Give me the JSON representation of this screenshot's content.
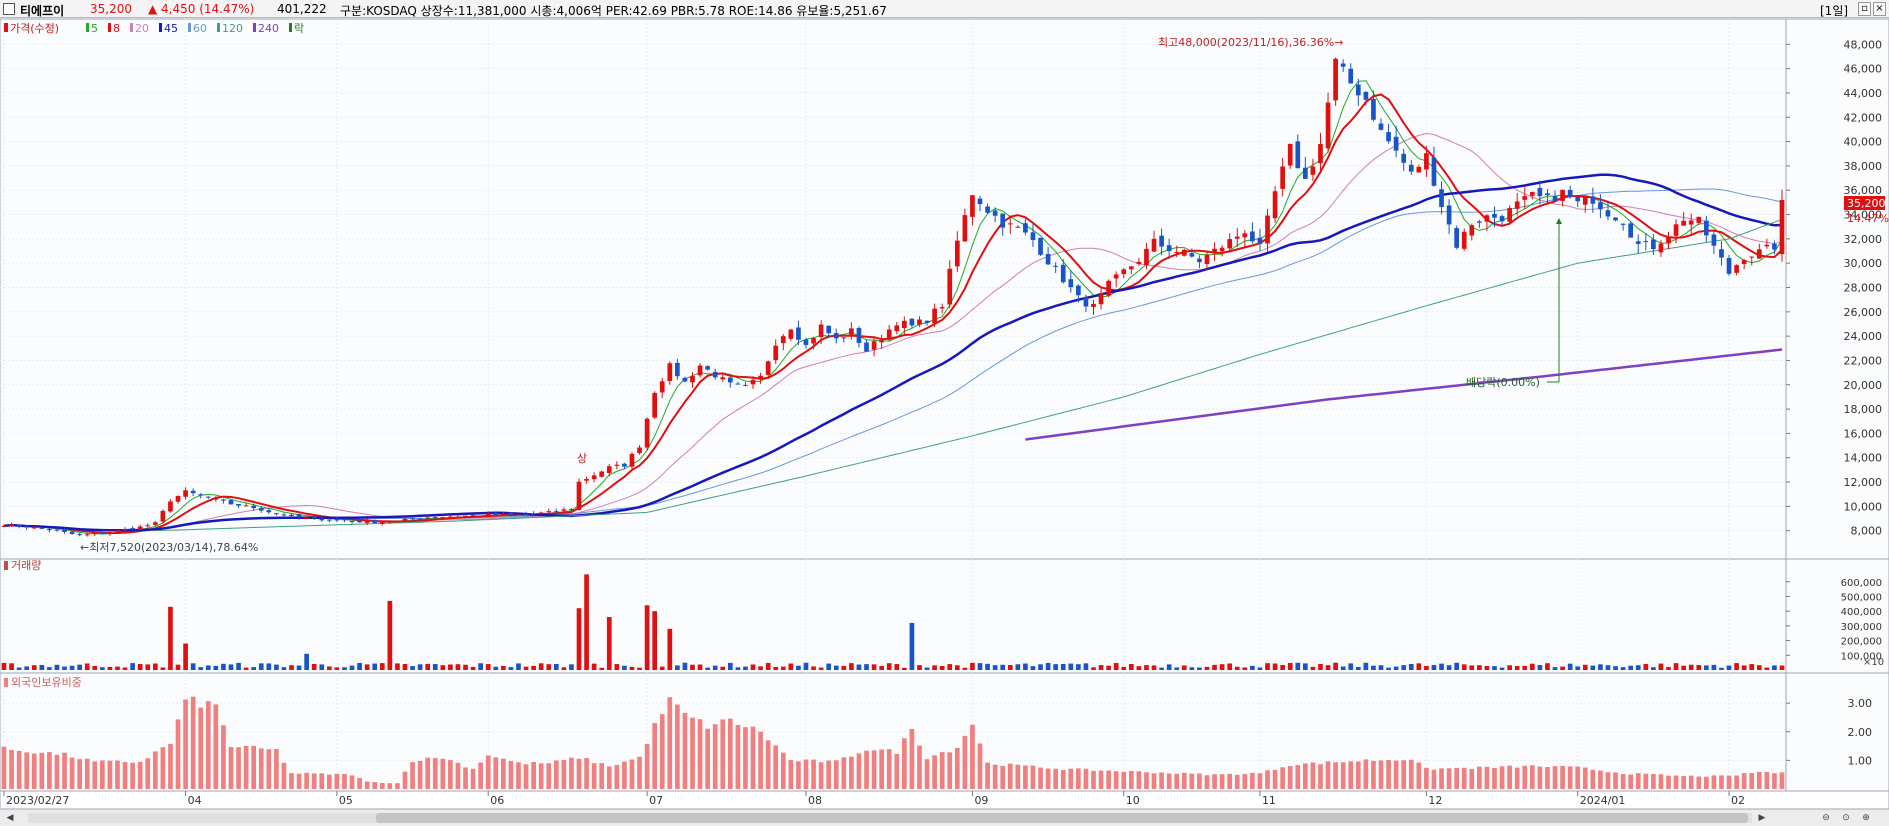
{
  "header": {
    "stock_name": "티에프이",
    "price": "35,200",
    "change": "▲ 4,450 (14.47%)",
    "volume": "401,222",
    "info": "구분:KOSDAQ 상장수:11,381,000 시총:4,006억 PER:42.69 PBR:5.78 ROE:14.86 유보율:5,251.67",
    "period_button": "[1일]"
  },
  "legend": {
    "main_label": "가격(수정)",
    "ma_items": [
      {
        "label": "5",
        "color": "#22aa22"
      },
      {
        "label": "8",
        "color": "#e01010"
      },
      {
        "label": "20",
        "color": "#d080b0"
      },
      {
        "label": "45",
        "color": "#1818b8"
      },
      {
        "label": "60",
        "color": "#6a9ad0"
      },
      {
        "label": "120",
        "color": "#40a080"
      },
      {
        "label": "240",
        "color": "#8040c0"
      },
      {
        "label": "락",
        "color": "#208020"
      }
    ]
  },
  "colors": {
    "up": "#e01010",
    "down": "#1a55c8",
    "foreign": "#f08080"
  },
  "annotations": {
    "high": "최고48,000(2023/11/16),36.36%→",
    "low": "←최저7,520(2023/03/14),78.64%",
    "limit_up": "상",
    "dividend": "배당락(0.00%)"
  },
  "price_tag": {
    "value": "35,200",
    "pct": "14.47%"
  },
  "volume_panel": {
    "title": "거래량",
    "unit": "×10"
  },
  "foreign_panel": {
    "title": "외국인보유비중"
  },
  "icons": [
    "zoom-out-icon",
    "zoom-reset-icon",
    "zoom-in-icon",
    "scroll-left-icon",
    "scroll-right-icon"
  ],
  "chart_data": {
    "type": "candlestick",
    "price_axis": {
      "ticks": [
        8000,
        10000,
        12000,
        14000,
        16000,
        18000,
        20000,
        22000,
        24000,
        26000,
        28000,
        30000,
        32000,
        34000,
        36000,
        38000,
        40000,
        42000,
        44000,
        46000,
        48000
      ],
      "tick_labels": [
        "8,000",
        "10,000",
        "12,000",
        "14,000",
        "16,000",
        "18,000",
        "20,000",
        "22,000",
        "24,000",
        "26,000",
        "28,000",
        "30,000",
        "32,000",
        "34,000",
        "36,000",
        "38,000",
        "40,000",
        "42,000",
        "44,000",
        "46,000",
        "48,000"
      ],
      "ylim": [
        6000,
        50000
      ]
    },
    "volume_axis": {
      "tick_labels": [
        "600,000",
        "500,000",
        "400,000",
        "300,000",
        "200,000",
        "100,000"
      ],
      "ticks": [
        60000,
        50000,
        40000,
        30000,
        20000,
        10000
      ],
      "ylim": [
        0,
        68000
      ]
    },
    "foreign_axis": {
      "tick_labels": [
        "3.00",
        "2.00",
        "1.00"
      ],
      "ticks": [
        3,
        2,
        1
      ],
      "ylim": [
        0,
        3.6
      ]
    },
    "x_labels": [
      "2023/02/27",
      "04",
      "05",
      "06",
      "07",
      "08",
      "09",
      "10",
      "11",
      "12",
      "2024/01",
      "02"
    ],
    "x_label_index": [
      0,
      24,
      44,
      64,
      85,
      106,
      128,
      148,
      166,
      188,
      208,
      228
    ],
    "n_days": 236,
    "price_anchors": [
      [
        0,
        8500
      ],
      [
        5,
        8200
      ],
      [
        10,
        7600
      ],
      [
        14,
        7900
      ],
      [
        18,
        8300
      ],
      [
        20,
        8600
      ],
      [
        22,
        10500
      ],
      [
        24,
        11200
      ],
      [
        27,
        10700
      ],
      [
        30,
        10200
      ],
      [
        33,
        9900
      ],
      [
        36,
        9400
      ],
      [
        40,
        9000
      ],
      [
        44,
        8900
      ],
      [
        48,
        8700
      ],
      [
        52,
        8800
      ],
      [
        56,
        9100
      ],
      [
        60,
        9200
      ],
      [
        64,
        9300
      ],
      [
        68,
        9300
      ],
      [
        72,
        9500
      ],
      [
        75,
        9800
      ],
      [
        76,
        12000
      ],
      [
        78,
        12600
      ],
      [
        80,
        13200
      ],
      [
        82,
        13400
      ],
      [
        84,
        15000
      ],
      [
        86,
        19500
      ],
      [
        88,
        21500
      ],
      [
        90,
        20200
      ],
      [
        92,
        21600
      ],
      [
        94,
        20800
      ],
      [
        96,
        20000
      ],
      [
        98,
        19800
      ],
      [
        100,
        20600
      ],
      [
        102,
        23500
      ],
      [
        104,
        24800
      ],
      [
        106,
        23200
      ],
      [
        108,
        24800
      ],
      [
        110,
        23700
      ],
      [
        112,
        24400
      ],
      [
        114,
        22800
      ],
      [
        116,
        23900
      ],
      [
        118,
        25200
      ],
      [
        120,
        24800
      ],
      [
        122,
        25400
      ],
      [
        124,
        26600
      ],
      [
        126,
        31800
      ],
      [
        128,
        35800
      ],
      [
        130,
        34400
      ],
      [
        132,
        33300
      ],
      [
        134,
        32800
      ],
      [
        136,
        31900
      ],
      [
        138,
        30200
      ],
      [
        140,
        28700
      ],
      [
        142,
        27100
      ],
      [
        144,
        26400
      ],
      [
        146,
        28200
      ],
      [
        148,
        29300
      ],
      [
        150,
        30300
      ],
      [
        152,
        31700
      ],
      [
        154,
        31200
      ],
      [
        156,
        30800
      ],
      [
        158,
        30200
      ],
      [
        160,
        31000
      ],
      [
        162,
        31800
      ],
      [
        164,
        32700
      ],
      [
        166,
        31200
      ],
      [
        168,
        35800
      ],
      [
        170,
        39400
      ],
      [
        172,
        36800
      ],
      [
        174,
        39800
      ],
      [
        176,
        46500
      ],
      [
        178,
        44800
      ],
      [
        180,
        43500
      ],
      [
        182,
        40800
      ],
      [
        184,
        39200
      ],
      [
        186,
        37300
      ],
      [
        188,
        38800
      ],
      [
        190,
        34800
      ],
      [
        192,
        31500
      ],
      [
        194,
        33300
      ],
      [
        196,
        33800
      ],
      [
        198,
        33800
      ],
      [
        200,
        34800
      ],
      [
        202,
        35500
      ],
      [
        204,
        35200
      ],
      [
        206,
        35800
      ],
      [
        208,
        34900
      ],
      [
        210,
        35300
      ],
      [
        212,
        34200
      ],
      [
        214,
        33500
      ],
      [
        216,
        31500
      ],
      [
        218,
        31400
      ],
      [
        220,
        32400
      ],
      [
        222,
        33700
      ],
      [
        224,
        33400
      ],
      [
        226,
        31300
      ],
      [
        228,
        29200
      ],
      [
        230,
        30600
      ],
      [
        232,
        30900
      ],
      [
        234,
        31400
      ],
      [
        235,
        35200
      ]
    ],
    "ma120_anchors": [
      [
        20,
        8000
      ],
      [
        60,
        8800
      ],
      [
        85,
        9500
      ],
      [
        106,
        12500
      ],
      [
        128,
        15800
      ],
      [
        148,
        19000
      ],
      [
        166,
        22500
      ],
      [
        188,
        26500
      ],
      [
        208,
        30000
      ],
      [
        228,
        32000
      ],
      [
        235,
        33600
      ]
    ],
    "ma240_anchors": [
      [
        135,
        15500
      ],
      [
        175,
        18800
      ],
      [
        205,
        20800
      ],
      [
        235,
        22900
      ]
    ],
    "volume_spikes": [
      [
        22,
        43000
      ],
      [
        24,
        18000
      ],
      [
        40,
        11000
      ],
      [
        51,
        47000
      ],
      [
        76,
        42000
      ],
      [
        77,
        65000
      ],
      [
        80,
        36000
      ],
      [
        85,
        44000
      ],
      [
        86,
        40000
      ],
      [
        88,
        28000
      ],
      [
        120,
        32000
      ]
    ],
    "foreign_anchors": [
      [
        0,
        1.4
      ],
      [
        8,
        1.2
      ],
      [
        12,
        0.95
      ],
      [
        18,
        0.95
      ],
      [
        22,
        1.6
      ],
      [
        24,
        3.1
      ],
      [
        28,
        2.9
      ],
      [
        30,
        1.5
      ],
      [
        36,
        1.35
      ],
      [
        38,
        0.55
      ],
      [
        46,
        0.5
      ],
      [
        48,
        0.25
      ],
      [
        52,
        0.2
      ],
      [
        54,
        1.0
      ],
      [
        58,
        1.1
      ],
      [
        62,
        0.7
      ],
      [
        64,
        1.2
      ],
      [
        68,
        0.9
      ],
      [
        72,
        0.9
      ],
      [
        76,
        1.1
      ],
      [
        80,
        0.8
      ],
      [
        84,
        1.1
      ],
      [
        86,
        2.2
      ],
      [
        88,
        3.1
      ],
      [
        90,
        2.6
      ],
      [
        93,
        2.2
      ],
      [
        96,
        2.4
      ],
      [
        100,
        2.0
      ],
      [
        104,
        1.0
      ],
      [
        110,
        0.95
      ],
      [
        114,
        1.4
      ],
      [
        118,
        1.3
      ],
      [
        120,
        2.1
      ],
      [
        122,
        1.1
      ],
      [
        126,
        1.45
      ],
      [
        128,
        2.3
      ],
      [
        130,
        0.9
      ],
      [
        140,
        0.7
      ],
      [
        150,
        0.6
      ],
      [
        160,
        0.5
      ],
      [
        166,
        0.55
      ],
      [
        170,
        0.85
      ],
      [
        180,
        1.0
      ],
      [
        186,
        1.05
      ],
      [
        188,
        0.7
      ],
      [
        196,
        0.75
      ],
      [
        202,
        0.8
      ],
      [
        208,
        0.75
      ],
      [
        214,
        0.55
      ],
      [
        222,
        0.45
      ],
      [
        228,
        0.45
      ],
      [
        232,
        0.6
      ],
      [
        235,
        0.55
      ]
    ]
  }
}
